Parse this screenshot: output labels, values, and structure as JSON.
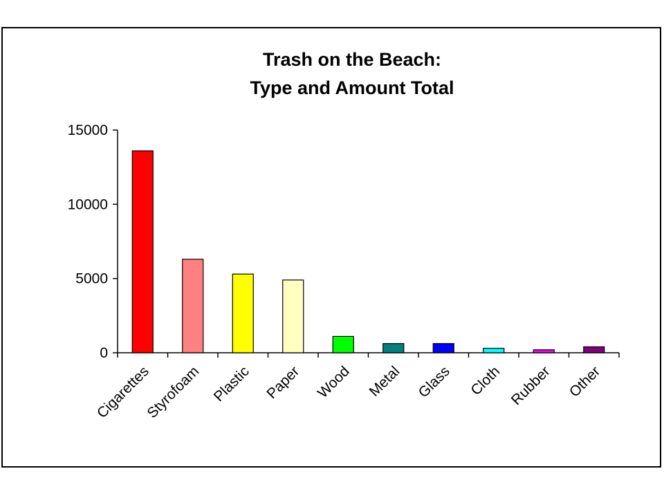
{
  "chart_data": {
    "type": "bar",
    "title": [
      "Trash on the Beach:",
      "Type and Amount Total"
    ],
    "xlabel": "",
    "ylabel": "",
    "ylim": [
      0,
      15000
    ],
    "yticks": [
      "0",
      "5000",
      "10000",
      "15000"
    ],
    "categories": [
      "Cigarettes",
      "Styrofoam",
      "Plastic",
      "Paper",
      "Wood",
      "Metal",
      "Glass",
      "Cloth",
      "Rubber",
      "Other"
    ],
    "values": [
      13600,
      6300,
      5300,
      4900,
      1100,
      620,
      620,
      300,
      200,
      400
    ],
    "colors": [
      "#ff0000",
      "#ff8080",
      "#ffff00",
      "#ffffc0",
      "#00ff00",
      "#008080",
      "#0000ff",
      "#00ffff",
      "#ff00ff",
      "#800080"
    ],
    "grid": false,
    "legend": "none"
  }
}
